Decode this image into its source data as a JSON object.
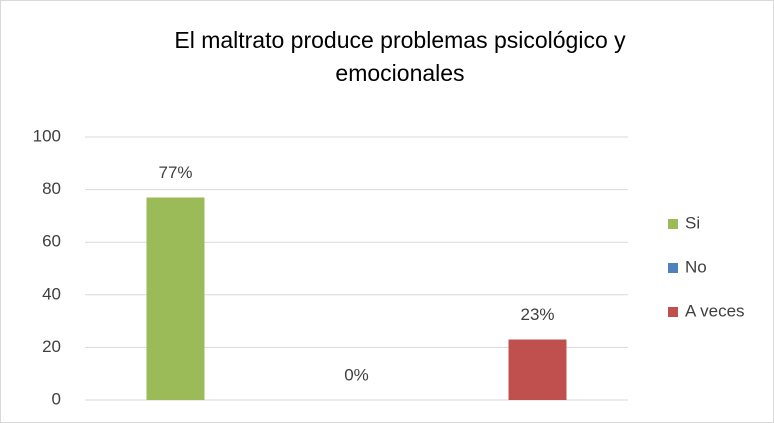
{
  "chart_data": {
    "type": "bar",
    "title": [
      "El maltrato produce problemas psicológico y",
      "emocionales"
    ],
    "categories": [
      "Si",
      "No",
      "A veces"
    ],
    "values": [
      77,
      0,
      23
    ],
    "value_labels": [
      "77%",
      "0%",
      "23%"
    ],
    "colors": [
      "#9bbb59",
      "#4f81bd",
      "#c0504d"
    ],
    "ylim": [
      0,
      100
    ],
    "yticks": [
      0,
      20,
      40,
      60,
      80,
      100
    ],
    "grid": true,
    "legend": "right"
  }
}
